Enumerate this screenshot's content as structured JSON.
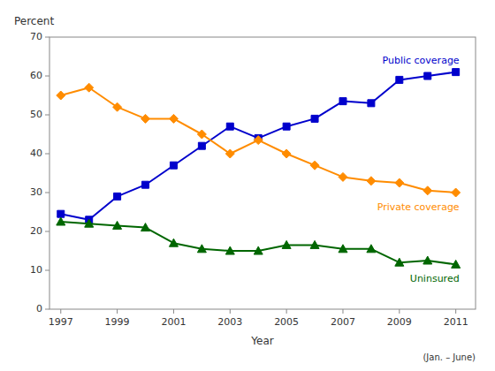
{
  "chart_data": {
    "type": "line",
    "xlabel": "Year",
    "ylabel": "Percent",
    "note": "(Jan. – June)",
    "x": [
      1997,
      1998,
      1999,
      2000,
      2001,
      2002,
      2003,
      2004,
      2005,
      2006,
      2007,
      2008,
      2009,
      2010,
      2011
    ],
    "xlim": [
      1996.6,
      2011.7
    ],
    "xticks": [
      1997,
      1999,
      2001,
      2003,
      2005,
      2007,
      2009,
      2011
    ],
    "ylim": [
      0,
      70
    ],
    "yticks": [
      0,
      10,
      20,
      30,
      40,
      50,
      60,
      70
    ],
    "grid": false,
    "series": [
      {
        "name": "Public coverage",
        "color": "#0000cc",
        "marker": "square",
        "values": [
          24.5,
          23.0,
          29.0,
          32.0,
          37.0,
          42.0,
          47.0,
          44.0,
          47.0,
          49.0,
          53.5,
          53.0,
          59.0,
          60.0,
          61.0
        ]
      },
      {
        "name": "Private coverage",
        "color": "#ff8c00",
        "marker": "diamond",
        "values": [
          55.0,
          57.0,
          52.0,
          49.0,
          49.0,
          45.0,
          40.0,
          43.5,
          40.0,
          37.0,
          34.0,
          33.0,
          32.5,
          30.5,
          30.0
        ]
      },
      {
        "name": "Uninsured",
        "color": "#006600",
        "marker": "triangle",
        "values": [
          22.5,
          22.0,
          21.5,
          21.0,
          17.0,
          15.5,
          15.0,
          15.0,
          16.5,
          16.5,
          15.5,
          15.5,
          12.0,
          12.5,
          11.5
        ]
      }
    ]
  }
}
